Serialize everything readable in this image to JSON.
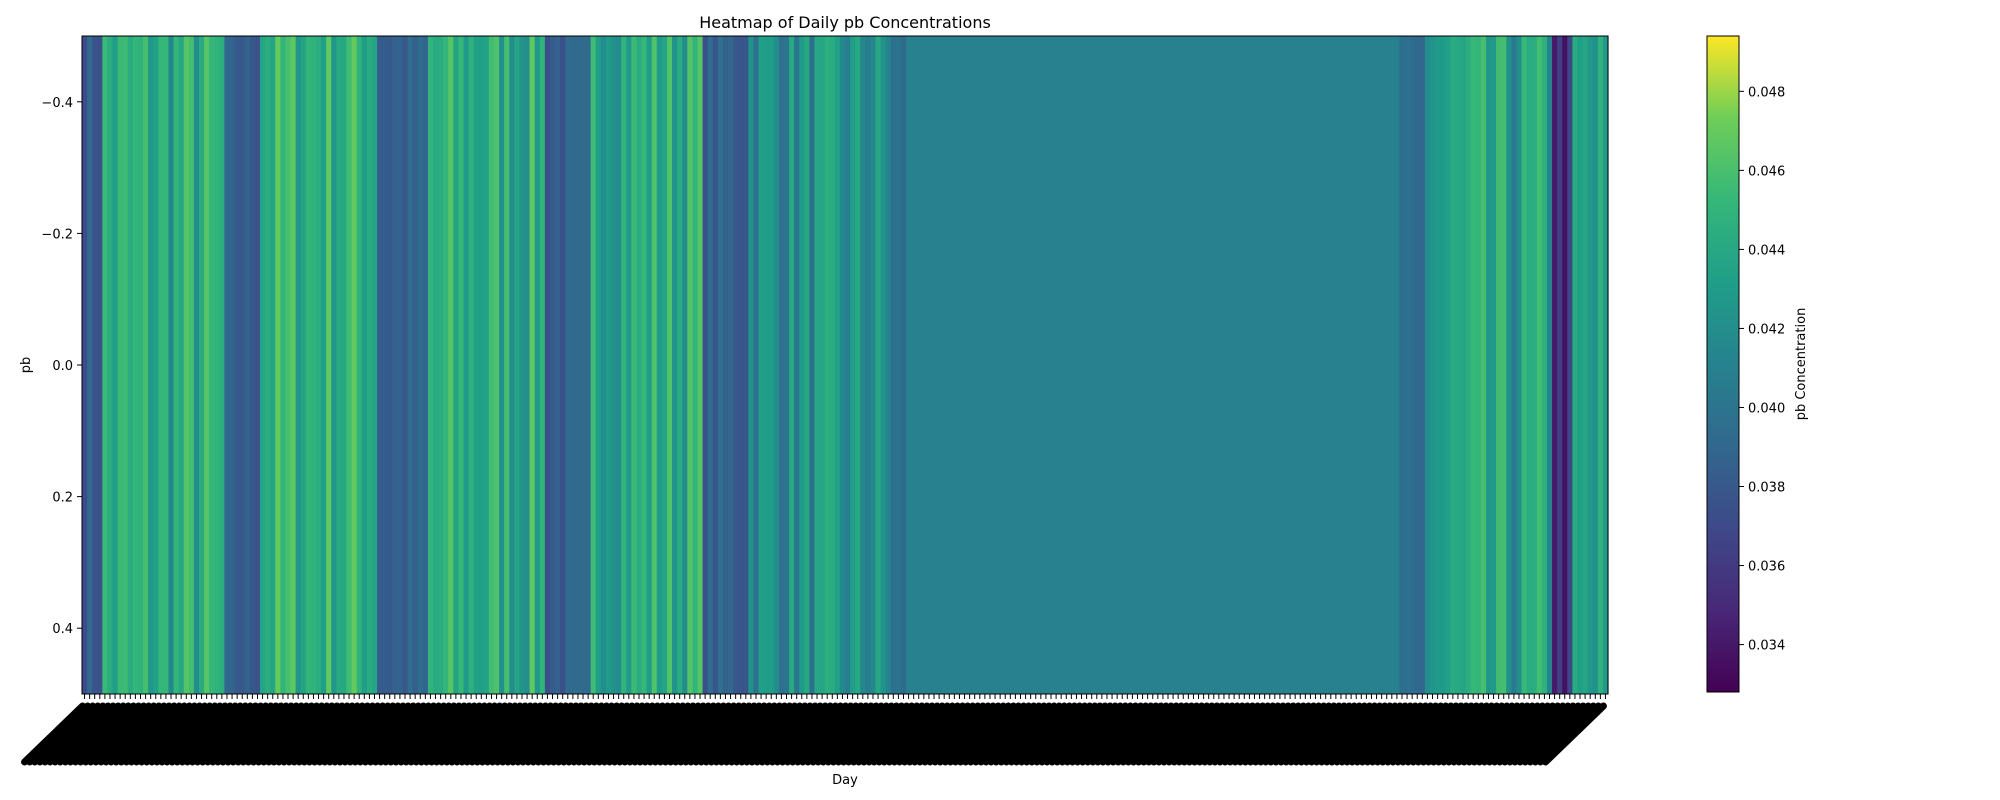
{
  "chart_data": {
    "type": "heatmap",
    "title": "Heatmap of Daily pb Concentrations",
    "xlabel": "Day",
    "ylabel": "pb",
    "y_ticks": [
      -0.4,
      -0.2,
      0.0,
      0.2,
      0.4
    ],
    "y_tick_labels": [
      "−0.4",
      "−0.2",
      "0.0",
      "0.2",
      "0.4"
    ],
    "ylim": [
      0.5,
      -0.5
    ],
    "num_days": 300,
    "x_tick_labels_legible": false,
    "colormap": "viridis",
    "colorbar": {
      "label": "pb Concentration",
      "range": [
        0.0328,
        0.0494
      ],
      "ticks": [
        0.034,
        0.036,
        0.038,
        0.04,
        0.042,
        0.044,
        0.046,
        0.048
      ],
      "tick_labels": [
        "0.034",
        "0.036",
        "0.038",
        "0.040",
        "0.042",
        "0.044",
        "0.046",
        "0.048"
      ]
    },
    "segments": [
      {
        "start_day": 0,
        "end_day": 3,
        "mean": 0.0382,
        "spread": 0.0012
      },
      {
        "start_day": 4,
        "end_day": 27,
        "mean": 0.0441,
        "spread": 0.0028
      },
      {
        "start_day": 28,
        "end_day": 34,
        "mean": 0.0382,
        "spread": 0.0008
      },
      {
        "start_day": 35,
        "end_day": 57,
        "mean": 0.0448,
        "spread": 0.0025
      },
      {
        "start_day": 58,
        "end_day": 67,
        "mean": 0.0385,
        "spread": 0.0012
      },
      {
        "start_day": 68,
        "end_day": 90,
        "mean": 0.0442,
        "spread": 0.0026
      },
      {
        "start_day": 91,
        "end_day": 99,
        "mean": 0.0383,
        "spread": 0.0012
      },
      {
        "start_day": 100,
        "end_day": 121,
        "mean": 0.0443,
        "spread": 0.0025
      },
      {
        "start_day": 122,
        "end_day": 130,
        "mean": 0.0385,
        "spread": 0.0012
      },
      {
        "start_day": 131,
        "end_day": 158,
        "mean": 0.042,
        "spread": 0.0025
      },
      {
        "start_day": 159,
        "end_day": 161,
        "mean": 0.0395,
        "spread": 0.0008
      },
      {
        "start_day": 162,
        "end_day": 258,
        "mean": 0.041,
        "spread": 0.0
      },
      {
        "start_day": 259,
        "end_day": 263,
        "mean": 0.0388,
        "spread": 0.001
      },
      {
        "start_day": 264,
        "end_day": 288,
        "mean": 0.043,
        "spread": 0.003
      },
      {
        "start_day": 289,
        "end_day": 292,
        "mean": 0.0352,
        "spread": 0.002
      },
      {
        "start_day": 293,
        "end_day": 299,
        "mean": 0.0425,
        "spread": 0.003
      }
    ]
  }
}
